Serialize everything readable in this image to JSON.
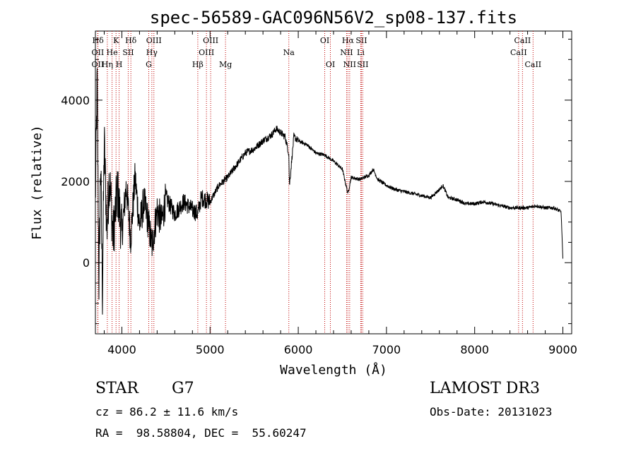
{
  "chart_data": {
    "type": "line",
    "title": "spec-56589-GAC096N56V2_sp08-137.fits",
    "xlabel": "Wavelength (Å)",
    "ylabel": "Flux (relative)",
    "xlim": [
      3700,
      9100
    ],
    "ylim": [
      -1750,
      5700
    ],
    "xticks": [
      4000,
      5000,
      6000,
      7000,
      8000,
      9000
    ],
    "yticks": [
      0,
      2000,
      4000
    ],
    "series": [
      {
        "name": "flux",
        "x": [
          3700,
          3720,
          3740,
          3760,
          3780,
          3800,
          3830,
          3860,
          3900,
          3950,
          4000,
          4050,
          4100,
          4150,
          4200,
          4250,
          4300,
          4340,
          4400,
          4450,
          4500,
          4600,
          4700,
          4800,
          4861,
          4900,
          5000,
          5100,
          5200,
          5300,
          5400,
          5500,
          5600,
          5700,
          5750,
          5800,
          5850,
          5892,
          5900,
          5950,
          6000,
          6100,
          6200,
          6300,
          6400,
          6500,
          6563,
          6600,
          6700,
          6800,
          6850,
          6900,
          7000,
          7100,
          7200,
          7300,
          7400,
          7500,
          7600,
          7640,
          7700,
          7800,
          7900,
          8000,
          8100,
          8200,
          8300,
          8400,
          8500,
          8600,
          8700,
          8800,
          8900,
          8980,
          9000
        ],
        "y": [
          1500,
          4500,
          -500,
          2500,
          -800,
          3000,
          800,
          2200,
          600,
          1800,
          700,
          1900,
          600,
          2100,
          900,
          1500,
          1000,
          400,
          1300,
          1000,
          1600,
          1200,
          1500,
          1300,
          1200,
          1600,
          1500,
          1900,
          2100,
          2400,
          2700,
          2800,
          3000,
          3150,
          3300,
          3200,
          3100,
          2700,
          1900,
          3100,
          3000,
          2900,
          2700,
          2650,
          2500,
          2300,
          1700,
          2100,
          2050,
          2150,
          2300,
          2050,
          1900,
          1800,
          1750,
          1700,
          1650,
          1600,
          1800,
          1900,
          1600,
          1550,
          1450,
          1450,
          1500,
          1450,
          1400,
          1350,
          1350,
          1350,
          1400,
          1350,
          1350,
          1250,
          100
        ]
      }
    ],
    "annotations": [
      {
        "label": "Hδ",
        "wavelength": 3729,
        "row": 1
      },
      {
        "label": "OII",
        "wavelength": 3727,
        "row": 2
      },
      {
        "label": "OII",
        "wavelength": 3727,
        "row": 3
      },
      {
        "label": "K",
        "wavelength": 3934,
        "row": 1
      },
      {
        "label": "He",
        "wavelength": 3889,
        "row": 2
      },
      {
        "label": "Hη",
        "wavelength": 3835,
        "row": 3
      },
      {
        "label": "SII",
        "wavelength": 4072,
        "row": 2
      },
      {
        "label": "H",
        "wavelength": 3969,
        "row": 3
      },
      {
        "label": "Hδ",
        "wavelength": 4102,
        "row": 1
      },
      {
        "label": "OIII",
        "wavelength": 4363,
        "row": 1
      },
      {
        "label": "Hγ",
        "wavelength": 4340,
        "row": 2
      },
      {
        "label": "G",
        "wavelength": 4305,
        "row": 3
      },
      {
        "label": "Hβ",
        "wavelength": 4861,
        "row": 3
      },
      {
        "label": "OIII",
        "wavelength": 5007,
        "row": 1
      },
      {
        "label": "OIII",
        "wavelength": 4959,
        "row": 2
      },
      {
        "label": "Mg",
        "wavelength": 5175,
        "row": 3
      },
      {
        "label": "Na",
        "wavelength": 5893,
        "row": 2
      },
      {
        "label": "OI",
        "wavelength": 6300,
        "row": 1
      },
      {
        "label": "OI",
        "wavelength": 6364,
        "row": 3
      },
      {
        "label": "Hα",
        "wavelength": 6563,
        "row": 1
      },
      {
        "label": "NII",
        "wavelength": 6548,
        "row": 2
      },
      {
        "label": "NII",
        "wavelength": 6583,
        "row": 3
      },
      {
        "label": "SII",
        "wavelength": 6716,
        "row": 1
      },
      {
        "label": "Li",
        "wavelength": 6708,
        "row": 2
      },
      {
        "label": "SII",
        "wavelength": 6731,
        "row": 3
      },
      {
        "label": "CaII",
        "wavelength": 8542,
        "row": 1
      },
      {
        "label": "CaII",
        "wavelength": 8498,
        "row": 2
      },
      {
        "label": "CaII",
        "wavelength": 8662,
        "row": 3
      }
    ]
  },
  "info": {
    "object_class": "STAR",
    "subclass": "G7",
    "survey": "LAMOST DR3",
    "redshift": "cz = 86.2 ± 11.6 km/s",
    "obs_date": "Obs-Date: 20131023",
    "coords": "RA =  98.58804, DEC =  55.60247"
  },
  "colors": {
    "line": "#000000",
    "marker": "#c00000",
    "background": "#ffffff"
  }
}
